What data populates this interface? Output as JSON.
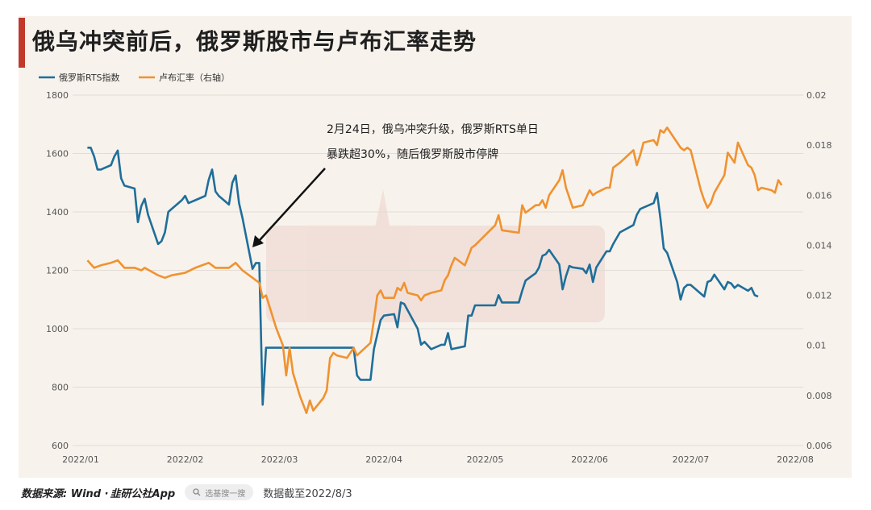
{
  "title": "俄乌冲突前后，俄罗斯股市与卢布汇率走势",
  "colors": {
    "rts": "#1f6e9a",
    "rub": "#f0922f",
    "accent": "#c0392b",
    "grid": "#e2dcd4"
  },
  "annotation": {
    "line1": "2月24日，俄乌冲突升级，俄罗斯RTS单日",
    "line2": "暴跌超30%，随后俄罗斯股市停牌"
  },
  "watermark_icon": "jiuyan-gongshe-watermark",
  "footer": {
    "source": "数据来源: Wind ·",
    "brand": "韭研公社App",
    "search_placeholder": "选基搜一搜",
    "data_date": "数据截至2022/8/3"
  },
  "chart_data": {
    "type": "line",
    "title": "俄乌冲突前后，俄罗斯股市与卢布汇率走势",
    "legend_position": "top-left",
    "grid": true,
    "x_ticks": [
      "2022/01",
      "2022/02",
      "2022/03",
      "2022/04",
      "2022/05",
      "2022/06",
      "2022/07",
      "2022/08"
    ],
    "x_range": [
      "2022/01",
      "2022/08"
    ],
    "y_left": {
      "ticks": [
        600,
        800,
        1000,
        1200,
        1400,
        1600,
        1800
      ],
      "range": [
        600,
        1800
      ]
    },
    "y_right": {
      "ticks": [
        "0.006",
        "0.008",
        "0.01",
        "0.012",
        "0.014",
        "0.016",
        "0.018",
        "0.02"
      ],
      "range": [
        0.006,
        0.02
      ]
    },
    "series": [
      {
        "name": "俄罗斯RTS指数",
        "axis": "left",
        "color": "#1f6e9a",
        "points": [
          [
            "2022-01-03",
            1620
          ],
          [
            "2022-01-04",
            1620
          ],
          [
            "2022-01-05",
            1590
          ],
          [
            "2022-01-06",
            1545
          ],
          [
            "2022-01-07",
            1545
          ],
          [
            "2022-01-10",
            1560
          ],
          [
            "2022-01-11",
            1590
          ],
          [
            "2022-01-12",
            1610
          ],
          [
            "2022-01-13",
            1515
          ],
          [
            "2022-01-14",
            1490
          ],
          [
            "2022-01-17",
            1480
          ],
          [
            "2022-01-18",
            1365
          ],
          [
            "2022-01-19",
            1420
          ],
          [
            "2022-01-20",
            1445
          ],
          [
            "2022-01-21",
            1390
          ],
          [
            "2022-01-24",
            1290
          ],
          [
            "2022-01-25",
            1300
          ],
          [
            "2022-01-26",
            1330
          ],
          [
            "2022-01-27",
            1400
          ],
          [
            "2022-01-28",
            1410
          ],
          [
            "2022-01-31",
            1440
          ],
          [
            "2022-02-01",
            1455
          ],
          [
            "2022-02-02",
            1430
          ],
          [
            "2022-02-03",
            1435
          ],
          [
            "2022-02-04",
            1440
          ],
          [
            "2022-02-07",
            1455
          ],
          [
            "2022-02-08",
            1510
          ],
          [
            "2022-02-09",
            1545
          ],
          [
            "2022-02-10",
            1470
          ],
          [
            "2022-02-11",
            1455
          ],
          [
            "2022-02-14",
            1425
          ],
          [
            "2022-02-15",
            1500
          ],
          [
            "2022-02-16",
            1525
          ],
          [
            "2022-02-17",
            1430
          ],
          [
            "2022-02-18",
            1380
          ],
          [
            "2022-02-21",
            1205
          ],
          [
            "2022-02-22",
            1225
          ],
          [
            "2022-02-23",
            1225
          ],
          [
            "2022-02-24",
            740
          ],
          [
            "2022-02-25",
            935
          ],
          [
            "2022-03-23",
            935
          ],
          [
            "2022-03-24",
            840
          ],
          [
            "2022-03-25",
            825
          ],
          [
            "2022-03-28",
            825
          ],
          [
            "2022-03-29",
            930
          ],
          [
            "2022-03-31",
            1030
          ],
          [
            "2022-04-01",
            1045
          ],
          [
            "2022-04-04",
            1050
          ],
          [
            "2022-04-05",
            1005
          ],
          [
            "2022-04-06",
            1090
          ],
          [
            "2022-04-07",
            1085
          ],
          [
            "2022-04-11",
            1000
          ],
          [
            "2022-04-12",
            945
          ],
          [
            "2022-04-13",
            955
          ],
          [
            "2022-04-15",
            930
          ],
          [
            "2022-04-18",
            945
          ],
          [
            "2022-04-19",
            945
          ],
          [
            "2022-04-20",
            985
          ],
          [
            "2022-04-21",
            930
          ],
          [
            "2022-04-25",
            940
          ],
          [
            "2022-04-26",
            1045
          ],
          [
            "2022-04-27",
            1045
          ],
          [
            "2022-04-28",
            1080
          ],
          [
            "2022-05-04",
            1080
          ],
          [
            "2022-05-05",
            1115
          ],
          [
            "2022-05-06",
            1090
          ],
          [
            "2022-05-11",
            1090
          ],
          [
            "2022-05-12",
            1130
          ],
          [
            "2022-05-13",
            1165
          ],
          [
            "2022-05-16",
            1190
          ],
          [
            "2022-05-17",
            1210
          ],
          [
            "2022-05-18",
            1250
          ],
          [
            "2022-05-19",
            1255
          ],
          [
            "2022-05-20",
            1270
          ],
          [
            "2022-05-23",
            1220
          ],
          [
            "2022-05-24",
            1135
          ],
          [
            "2022-05-25",
            1180
          ],
          [
            "2022-05-26",
            1215
          ],
          [
            "2022-05-27",
            1210
          ],
          [
            "2022-05-30",
            1205
          ],
          [
            "2022-05-31",
            1190
          ],
          [
            "2022-06-01",
            1220
          ],
          [
            "2022-06-02",
            1160
          ],
          [
            "2022-06-03",
            1210
          ],
          [
            "2022-06-06",
            1265
          ],
          [
            "2022-06-07",
            1265
          ],
          [
            "2022-06-08",
            1290
          ],
          [
            "2022-06-09",
            1310
          ],
          [
            "2022-06-10",
            1330
          ],
          [
            "2022-06-14",
            1355
          ],
          [
            "2022-06-15",
            1390
          ],
          [
            "2022-06-16",
            1410
          ],
          [
            "2022-06-17",
            1415
          ],
          [
            "2022-06-20",
            1430
          ],
          [
            "2022-06-21",
            1465
          ],
          [
            "2022-06-22",
            1380
          ],
          [
            "2022-06-23",
            1275
          ],
          [
            "2022-06-24",
            1260
          ],
          [
            "2022-06-27",
            1160
          ],
          [
            "2022-06-28",
            1100
          ],
          [
            "2022-06-29",
            1140
          ],
          [
            "2022-06-30",
            1150
          ],
          [
            "2022-07-01",
            1150
          ],
          [
            "2022-07-04",
            1120
          ],
          [
            "2022-07-05",
            1110
          ],
          [
            "2022-07-06",
            1160
          ],
          [
            "2022-07-07",
            1165
          ],
          [
            "2022-07-08",
            1185
          ],
          [
            "2022-07-11",
            1135
          ],
          [
            "2022-07-12",
            1160
          ],
          [
            "2022-07-13",
            1155
          ],
          [
            "2022-07-14",
            1140
          ],
          [
            "2022-07-15",
            1150
          ],
          [
            "2022-07-18",
            1130
          ],
          [
            "2022-07-19",
            1140
          ],
          [
            "2022-07-20",
            1115
          ],
          [
            "2022-07-21",
            1110
          ]
        ]
      },
      {
        "name": "卢布汇率（右轴）",
        "axis": "right",
        "color": "#f0922f",
        "points": [
          [
            "2022-01-03",
            0.0134
          ],
          [
            "2022-01-05",
            0.0131
          ],
          [
            "2022-01-07",
            0.0132
          ],
          [
            "2022-01-10",
            0.0133
          ],
          [
            "2022-01-12",
            0.0134
          ],
          [
            "2022-01-14",
            0.0131
          ],
          [
            "2022-01-17",
            0.0131
          ],
          [
            "2022-01-19",
            0.013
          ],
          [
            "2022-01-20",
            0.0131
          ],
          [
            "2022-01-24",
            0.0128
          ],
          [
            "2022-01-26",
            0.0127
          ],
          [
            "2022-01-28",
            0.0128
          ],
          [
            "2022-02-01",
            0.0129
          ],
          [
            "2022-02-04",
            0.0131
          ],
          [
            "2022-02-08",
            0.0133
          ],
          [
            "2022-02-10",
            0.0131
          ],
          [
            "2022-02-14",
            0.0131
          ],
          [
            "2022-02-16",
            0.0133
          ],
          [
            "2022-02-18",
            0.013
          ],
          [
            "2022-02-21",
            0.0127
          ],
          [
            "2022-02-23",
            0.0125
          ],
          [
            "2022-02-24",
            0.0119
          ],
          [
            "2022-02-25",
            0.012
          ],
          [
            "2022-02-28",
            0.0107
          ],
          [
            "2022-03-02",
            0.01
          ],
          [
            "2022-03-03",
            0.0088
          ],
          [
            "2022-03-04",
            0.0099
          ],
          [
            "2022-03-05",
            0.0089
          ],
          [
            "2022-03-07",
            0.008
          ],
          [
            "2022-03-09",
            0.0073
          ],
          [
            "2022-03-10",
            0.0078
          ],
          [
            "2022-03-11",
            0.0074
          ],
          [
            "2022-03-14",
            0.0079
          ],
          [
            "2022-03-15",
            0.0082
          ],
          [
            "2022-03-16",
            0.0095
          ],
          [
            "2022-03-17",
            0.0097
          ],
          [
            "2022-03-18",
            0.0096
          ],
          [
            "2022-03-21",
            0.0095
          ],
          [
            "2022-03-23",
            0.0099
          ],
          [
            "2022-03-24",
            0.0096
          ],
          [
            "2022-03-28",
            0.0101
          ],
          [
            "2022-03-29",
            0.011
          ],
          [
            "2022-03-30",
            0.012
          ],
          [
            "2022-03-31",
            0.0122
          ],
          [
            "2022-04-01",
            0.0119
          ],
          [
            "2022-04-04",
            0.0119
          ],
          [
            "2022-04-05",
            0.0123
          ],
          [
            "2022-04-06",
            0.0122
          ],
          [
            "2022-04-07",
            0.0125
          ],
          [
            "2022-04-08",
            0.0121
          ],
          [
            "2022-04-11",
            0.012
          ],
          [
            "2022-04-12",
            0.0118
          ],
          [
            "2022-04-13",
            0.012
          ],
          [
            "2022-04-15",
            0.0121
          ],
          [
            "2022-04-18",
            0.0122
          ],
          [
            "2022-04-19",
            0.0126
          ],
          [
            "2022-04-20",
            0.0128
          ],
          [
            "2022-04-21",
            0.0132
          ],
          [
            "2022-04-22",
            0.0135
          ],
          [
            "2022-04-25",
            0.0132
          ],
          [
            "2022-04-27",
            0.0139
          ],
          [
            "2022-04-28",
            0.014
          ],
          [
            "2022-05-04",
            0.0148
          ],
          [
            "2022-05-05",
            0.0152
          ],
          [
            "2022-05-06",
            0.0146
          ],
          [
            "2022-05-11",
            0.0145
          ],
          [
            "2022-05-12",
            0.0156
          ],
          [
            "2022-05-13",
            0.0153
          ],
          [
            "2022-05-16",
            0.0156
          ],
          [
            "2022-05-17",
            0.0156
          ],
          [
            "2022-05-18",
            0.0158
          ],
          [
            "2022-05-19",
            0.0155
          ],
          [
            "2022-05-20",
            0.016
          ],
          [
            "2022-05-23",
            0.0166
          ],
          [
            "2022-05-24",
            0.017
          ],
          [
            "2022-05-25",
            0.0163
          ],
          [
            "2022-05-26",
            0.0159
          ],
          [
            "2022-05-27",
            0.0155
          ],
          [
            "2022-05-30",
            0.0156
          ],
          [
            "2022-05-31",
            0.0159
          ],
          [
            "2022-06-01",
            0.0162
          ],
          [
            "2022-06-02",
            0.016
          ],
          [
            "2022-06-03",
            0.0161
          ],
          [
            "2022-06-06",
            0.0163
          ],
          [
            "2022-06-07",
            0.0163
          ],
          [
            "2022-06-08",
            0.0171
          ],
          [
            "2022-06-09",
            0.0172
          ],
          [
            "2022-06-10",
            0.0173
          ],
          [
            "2022-06-14",
            0.0178
          ],
          [
            "2022-06-15",
            0.0172
          ],
          [
            "2022-06-16",
            0.0176
          ],
          [
            "2022-06-17",
            0.0181
          ],
          [
            "2022-06-20",
            0.0182
          ],
          [
            "2022-06-21",
            0.018
          ],
          [
            "2022-06-22",
            0.0186
          ],
          [
            "2022-06-23",
            0.0185
          ],
          [
            "2022-06-24",
            0.0187
          ],
          [
            "2022-06-27",
            0.0181
          ],
          [
            "2022-06-28",
            0.0179
          ],
          [
            "2022-06-29",
            0.0178
          ],
          [
            "2022-06-30",
            0.0179
          ],
          [
            "2022-07-01",
            0.0178
          ],
          [
            "2022-07-04",
            0.0162
          ],
          [
            "2022-07-05",
            0.0158
          ],
          [
            "2022-07-06",
            0.0155
          ],
          [
            "2022-07-07",
            0.0157
          ],
          [
            "2022-07-08",
            0.0161
          ],
          [
            "2022-07-11",
            0.0168
          ],
          [
            "2022-07-12",
            0.0177
          ],
          [
            "2022-07-13",
            0.0175
          ],
          [
            "2022-07-14",
            0.0173
          ],
          [
            "2022-07-15",
            0.0181
          ],
          [
            "2022-07-18",
            0.0172
          ],
          [
            "2022-07-19",
            0.0171
          ],
          [
            "2022-07-20",
            0.0168
          ],
          [
            "2022-07-21",
            0.0162
          ],
          [
            "2022-07-22",
            0.0163
          ],
          [
            "2022-07-25",
            0.0162
          ],
          [
            "2022-07-26",
            0.0161
          ],
          [
            "2022-07-27",
            0.0166
          ],
          [
            "2022-07-28",
            0.0164
          ]
        ]
      }
    ]
  }
}
